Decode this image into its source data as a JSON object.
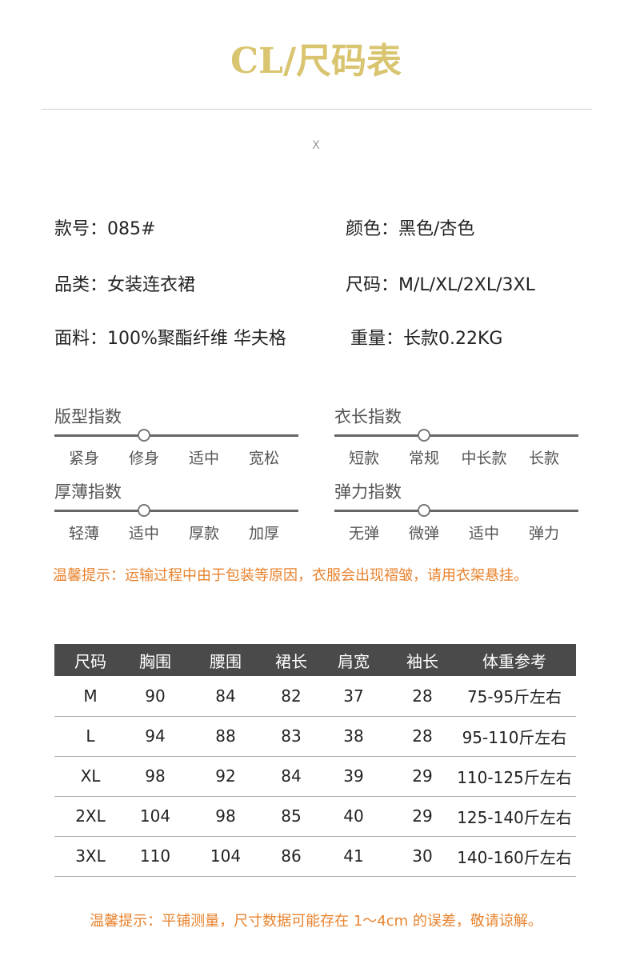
{
  "title": "CL/尺码表",
  "close_mark": "X",
  "info": {
    "style_no": "款号：085#",
    "color": "颜色：黑色/杏色",
    "category": "品类：女装连衣裙",
    "sizes": "尺码：M/L/XL/2XL/3XL",
    "fabric": "面料：100%聚酯纤维 华夫格",
    "weight": "重量：长款0.22KG"
  },
  "indices": [
    {
      "title": "版型指数",
      "options": [
        "紧身",
        "修身",
        "适中",
        "宽松"
      ],
      "selected": 1
    },
    {
      "title": "衣长指数",
      "options": [
        "短款",
        "常规",
        "中长款",
        "长款"
      ],
      "selected": 1
    },
    {
      "title": "厚薄指数",
      "options": [
        "轻薄",
        "适中",
        "厚款",
        "加厚"
      ],
      "selected": 1
    },
    {
      "title": "弹力指数",
      "options": [
        "无弹",
        "微弹",
        "适中",
        "弹力"
      ],
      "selected": 1
    }
  ],
  "tip1": "温馨提示：运输过程中由于包装等原因，衣服会出现褶皱，请用衣架悬挂。",
  "table": {
    "headers": [
      "尺码",
      "胸围",
      "腰围",
      "裙长",
      "肩宽",
      "袖长",
      "体重参考"
    ],
    "rows": [
      [
        "M",
        "90",
        "84",
        "82",
        "37",
        "28",
        "75-95斤左右"
      ],
      [
        "L",
        "94",
        "88",
        "83",
        "38",
        "28",
        "95-110斤左右"
      ],
      [
        "XL",
        "98",
        "92",
        "84",
        "39",
        "29",
        "110-125斤左右"
      ],
      [
        "2XL",
        "104",
        "98",
        "85",
        "40",
        "29",
        "125-140斤左右"
      ],
      [
        "3XL",
        "110",
        "104",
        "86",
        "41",
        "30",
        "140-160斤左右"
      ]
    ]
  },
  "tip2": "温馨提示：平铺测量，尺寸数据可能存在 1～4cm 的误差，敬请谅解。",
  "colors": {
    "title": "#d9c46f",
    "accent": "#e8832e",
    "header_bg": "#4a4a4a"
  }
}
